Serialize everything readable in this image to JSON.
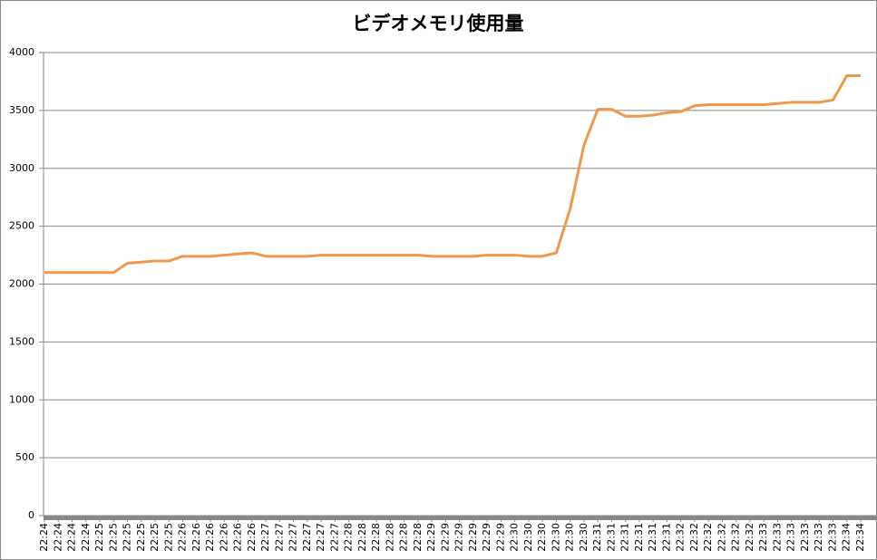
{
  "chart_data": {
    "type": "line",
    "title": "ビデオメモリ使用量",
    "categories": [
      "22:24",
      "22:24",
      "22:24",
      "22:24",
      "22:25",
      "22:25",
      "22:25",
      "22:25",
      "22:25",
      "22:25",
      "22:26",
      "22:26",
      "22:26",
      "22:26",
      "22:26",
      "22:26",
      "22:27",
      "22:27",
      "22:27",
      "22:27",
      "22:27",
      "22:27",
      "22:28",
      "22:28",
      "22:28",
      "22:28",
      "22:28",
      "22:28",
      "22:29",
      "22:29",
      "22:29",
      "22:29",
      "22:29",
      "22:29",
      "22:30",
      "22:30",
      "22:30",
      "22:30",
      "22:30",
      "22:30",
      "22:31",
      "22:31",
      "22:31",
      "22:31",
      "22:31",
      "22:31",
      "22:32",
      "22:32",
      "22:32",
      "22:32",
      "22:32",
      "22:32",
      "22:33",
      "22:33",
      "22:33",
      "22:33",
      "22:33",
      "22:33",
      "22:34",
      "22:34"
    ],
    "series": [
      {
        "name": "ビデオメモリ使用量",
        "color": "#f0984a",
        "values": [
          2100,
          2100,
          2100,
          2100,
          2100,
          2100,
          2180,
          2190,
          2200,
          2200,
          2240,
          2240,
          2240,
          2250,
          2260,
          2270,
          2240,
          2240,
          2240,
          2240,
          2250,
          2250,
          2250,
          2250,
          2250,
          2250,
          2250,
          2250,
          2240,
          2240,
          2240,
          2240,
          2250,
          2250,
          2250,
          2240,
          2240,
          2270,
          2650,
          3200,
          3510,
          3510,
          3450,
          3450,
          3460,
          3480,
          3490,
          3540,
          3550,
          3550,
          3550,
          3550,
          3550,
          3560,
          3570,
          3570,
          3570,
          3590,
          3800,
          3800
        ]
      }
    ],
    "ylim": [
      0,
      4000
    ],
    "yticks": [
      0,
      500,
      1000,
      1500,
      2000,
      2500,
      3000,
      3500,
      4000
    ],
    "grid": true
  }
}
